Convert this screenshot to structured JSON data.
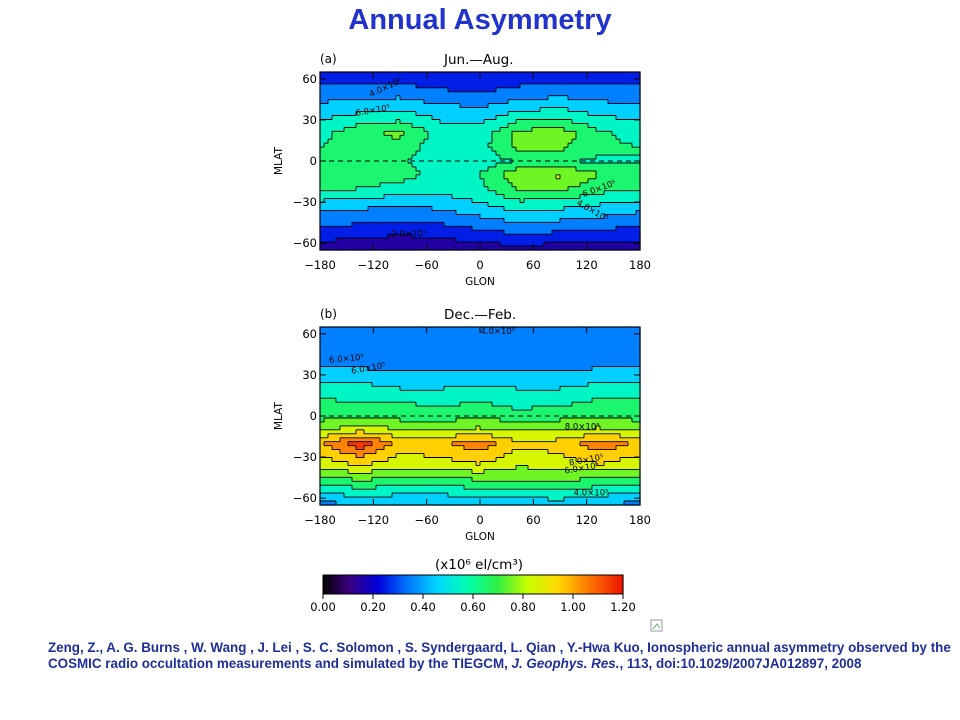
{
  "title": "Annual Asymmetry",
  "colors": {
    "title": "#2233cc",
    "citation": "#1f2f9a"
  },
  "chart_data": [
    {
      "type": "heatmap",
      "panel": "(a)",
      "title": "Jun.—Aug.",
      "xlabel": "GLON",
      "ylabel": "MLAT",
      "xlim": [
        -180,
        180
      ],
      "ylim": [
        -65,
        65
      ],
      "xticks": [
        "−180",
        "−120",
        "−60",
        "0",
        "60",
        "120",
        "180"
      ],
      "yticks": [
        "60",
        "30",
        "0",
        "−30",
        "−60"
      ],
      "z_unit": "x10^6 el/cm^3",
      "grid": {
        "lat": [
          -65,
          -50,
          -35,
          -20,
          -10,
          0,
          10,
          20,
          35,
          50,
          65
        ],
        "lon": [
          -180,
          -135,
          -90,
          -45,
          0,
          45,
          90,
          135,
          180
        ],
        "values": [
          [
            0.14,
            0.12,
            0.1,
            0.12,
            0.14,
            0.16,
            0.14,
            0.14,
            0.14
          ],
          [
            0.28,
            0.26,
            0.24,
            0.26,
            0.3,
            0.34,
            0.32,
            0.3,
            0.28
          ],
          [
            0.42,
            0.4,
            0.38,
            0.4,
            0.46,
            0.52,
            0.5,
            0.46,
            0.42
          ],
          [
            0.62,
            0.6,
            0.56,
            0.54,
            0.58,
            0.72,
            0.72,
            0.64,
            0.62
          ],
          [
            0.68,
            0.68,
            0.64,
            0.56,
            0.6,
            0.78,
            0.82,
            0.7,
            0.68
          ],
          [
            0.6,
            0.64,
            0.62,
            0.52,
            0.54,
            0.62,
            0.62,
            0.58,
            0.6
          ],
          [
            0.6,
            0.68,
            0.66,
            0.54,
            0.56,
            0.74,
            0.72,
            0.62,
            0.6
          ],
          [
            0.56,
            0.68,
            0.72,
            0.56,
            0.54,
            0.74,
            0.76,
            0.62,
            0.56
          ],
          [
            0.46,
            0.5,
            0.52,
            0.46,
            0.44,
            0.52,
            0.54,
            0.48,
            0.46
          ],
          [
            0.34,
            0.36,
            0.36,
            0.32,
            0.3,
            0.34,
            0.36,
            0.34,
            0.34
          ],
          [
            0.24,
            0.24,
            0.22,
            0.2,
            0.2,
            0.22,
            0.24,
            0.24,
            0.24
          ]
        ]
      },
      "contour_labels": [
        {
          "text": "4.0×10⁵",
          "lon": -105,
          "lat": 52,
          "angle": -25
        },
        {
          "text": "6.0×10⁵",
          "lon": -120,
          "lat": 35,
          "angle": -10
        },
        {
          "text": "6.0×10⁵",
          "lon": 135,
          "lat": -22,
          "angle": -20
        },
        {
          "text": "4.0×10⁵",
          "lon": 125,
          "lat": -38,
          "angle": 30
        },
        {
          "text": "2.0×10⁵",
          "lon": -80,
          "lat": -55,
          "angle": 0
        }
      ]
    },
    {
      "type": "heatmap",
      "panel": "(b)",
      "title": "Dec.—Feb.",
      "xlabel": "GLON",
      "ylabel": "MLAT",
      "xlim": [
        -180,
        180
      ],
      "ylim": [
        -65,
        65
      ],
      "xticks": [
        "−180",
        "−120",
        "−60",
        "0",
        "60",
        "120",
        "180"
      ],
      "yticks": [
        "60",
        "30",
        "0",
        "−30",
        "−60"
      ],
      "z_unit": "x10^6 el/cm^3",
      "grid": {
        "lat": [
          -65,
          -50,
          -35,
          -20,
          -10,
          0,
          10,
          20,
          35,
          50,
          65
        ],
        "lon": [
          -180,
          -135,
          -90,
          -45,
          0,
          45,
          90,
          135,
          180
        ],
        "values": [
          [
            0.36,
            0.4,
            0.38,
            0.38,
            0.4,
            0.42,
            0.44,
            0.4,
            0.36
          ],
          [
            0.6,
            0.64,
            0.62,
            0.62,
            0.64,
            0.66,
            0.66,
            0.62,
            0.6
          ],
          [
            0.84,
            0.92,
            0.84,
            0.86,
            0.9,
            0.82,
            0.86,
            0.9,
            0.84
          ],
          [
            0.98,
            1.16,
            0.96,
            0.98,
            1.06,
            0.92,
            0.94,
            1.06,
            0.98
          ],
          [
            0.78,
            0.86,
            0.8,
            0.8,
            0.82,
            0.78,
            0.8,
            0.82,
            0.78
          ],
          [
            0.66,
            0.7,
            0.66,
            0.64,
            0.68,
            0.64,
            0.66,
            0.68,
            0.66
          ],
          [
            0.62,
            0.6,
            0.6,
            0.58,
            0.6,
            0.56,
            0.58,
            0.62,
            0.62
          ],
          [
            0.54,
            0.54,
            0.5,
            0.5,
            0.52,
            0.5,
            0.5,
            0.54,
            0.54
          ],
          [
            0.4,
            0.4,
            0.38,
            0.38,
            0.38,
            0.38,
            0.38,
            0.4,
            0.4
          ],
          [
            0.34,
            0.34,
            0.32,
            0.34,
            0.34,
            0.34,
            0.34,
            0.34,
            0.34
          ],
          [
            0.34,
            0.34,
            0.34,
            0.34,
            0.36,
            0.36,
            0.34,
            0.34,
            0.34
          ]
        ]
      },
      "contour_labels": [
        {
          "text": "4.0×10⁵",
          "lon": 20,
          "lat": 60,
          "angle": 0
        },
        {
          "text": "6.0×10⁵",
          "lon": -150,
          "lat": 40,
          "angle": -5
        },
        {
          "text": "6.0×10⁵",
          "lon": -125,
          "lat": 33,
          "angle": -10
        },
        {
          "text": "8.0×10⁵",
          "lon": 115,
          "lat": -10,
          "angle": 0
        },
        {
          "text": "8.0×10⁵",
          "lon": 120,
          "lat": -34,
          "angle": -10
        },
        {
          "text": "6.0×10⁵",
          "lon": 115,
          "lat": -40,
          "angle": -10
        },
        {
          "text": "4.0×10⁵",
          "lon": 125,
          "lat": -58,
          "angle": 0
        }
      ]
    }
  ],
  "colorbar": {
    "unit": "(x10⁶ el/cm³)",
    "min": 0,
    "max": 1.2,
    "ticks": [
      "0.00",
      "0.20",
      "0.40",
      "0.60",
      "0.80",
      "1.00",
      "1.20"
    ],
    "stops": [
      {
        "v": 0.0,
        "c": "#000000"
      },
      {
        "v": 0.1,
        "c": "#3a007a"
      },
      {
        "v": 0.22,
        "c": "#0000dd"
      },
      {
        "v": 0.34,
        "c": "#0077ff"
      },
      {
        "v": 0.46,
        "c": "#00d8ff"
      },
      {
        "v": 0.58,
        "c": "#00ffb0"
      },
      {
        "v": 0.7,
        "c": "#30ee40"
      },
      {
        "v": 0.82,
        "c": "#c8ff00"
      },
      {
        "v": 0.94,
        "c": "#ffd800"
      },
      {
        "v": 1.06,
        "c": "#ff7a00"
      },
      {
        "v": 1.2,
        "c": "#ee1100"
      }
    ]
  },
  "citation": {
    "authors": "Zeng, Z., A. G. Burns , W. Wang , J. Lei , S. C. Solomon , S. Syndergaard, L. Qian , Y.-Hwa Kuo, Ionospheric annual asymmetry observed by the COSMIC radio occultation measurements and simulated by the TIEGCM, ",
    "journal": "J. Geophys. Res.",
    "tail": ", 113, doi:10.1029/2007JA012897, 2008"
  }
}
